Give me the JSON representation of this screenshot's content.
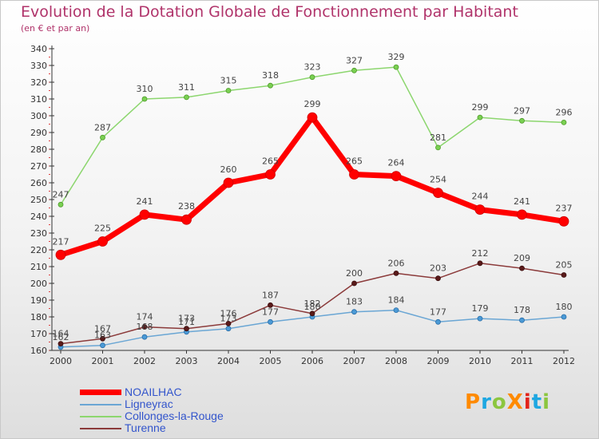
{
  "header": {
    "title": "Evolution de la Dotation Globale de Fonctionnement par Habitant",
    "subtitle": "(en € et par an)"
  },
  "logo": {
    "text": "ProXiti",
    "colors": [
      "#ff8a00",
      "#1ea7e1",
      "#8cc63f",
      "#ff8a00",
      "#e2231a",
      "#1ea7e1",
      "#8cc63f"
    ]
  },
  "chart_data": {
    "type": "line",
    "title": "Evolution de la Dotation Globale de Fonctionnement par Habitant",
    "subtitle": "(en € et par an)",
    "x": [
      "2000",
      "2001",
      "2002",
      "2003",
      "2004",
      "2005",
      "2006",
      "2007",
      "2008",
      "2009",
      "2010",
      "2011",
      "2012"
    ],
    "ylim": [
      160,
      340
    ],
    "yticks": [
      160,
      170,
      180,
      190,
      200,
      210,
      220,
      230,
      240,
      250,
      260,
      270,
      280,
      290,
      300,
      310,
      320,
      330,
      340
    ],
    "grid": false,
    "legend_position": "bottom-left",
    "series": [
      {
        "name": "NOAILHAC",
        "color": "#ff0000",
        "values": [
          217,
          225,
          241,
          238,
          260,
          265,
          299,
          265,
          264,
          254,
          244,
          241,
          237
        ]
      },
      {
        "name": "Ligneyrac",
        "color": "#6aa6d4",
        "values": [
          162,
          163,
          168,
          171,
          173,
          177,
          180,
          183,
          184,
          177,
          179,
          178,
          180
        ]
      },
      {
        "name": "Collonges-la-Rouge",
        "color": "#8cd66e",
        "values": [
          247,
          287,
          310,
          311,
          315,
          318,
          323,
          327,
          329,
          281,
          299,
          297,
          296
        ]
      },
      {
        "name": "Turenne",
        "color": "#8b3a3a",
        "values": [
          164,
          167,
          174,
          173,
          176,
          187,
          182,
          200,
          206,
          203,
          212,
          209,
          205
        ]
      }
    ]
  }
}
